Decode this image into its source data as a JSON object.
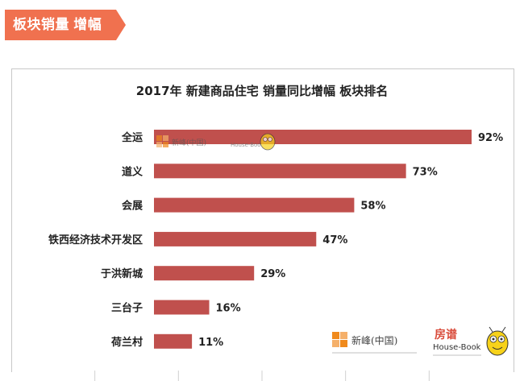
{
  "section_tag": "板块销量 增幅",
  "watermarks": {
    "brand_a_name": "新峰(中国)",
    "brand_b_name": "房谱",
    "brand_b_en": "House-Book",
    "accent_orange": "#f08a1c",
    "accent_red": "#d94b3a"
  },
  "chart_data": {
    "type": "bar",
    "orientation": "horizontal",
    "title": "2017年 新建商品住宅 销量同比增幅 板块排名",
    "categories": [
      "全运",
      "道义",
      "会展",
      "铁西经济技术开发区",
      "于洪新城",
      "三台子",
      "荷兰村"
    ],
    "values": [
      92,
      73,
      58,
      47,
      29,
      16,
      11
    ],
    "value_labels": [
      "92%",
      "73%",
      "58%",
      "47%",
      "29%",
      "16%",
      "11%"
    ],
    "unit": "%",
    "xlim": [
      0,
      92
    ],
    "bar_color": "#c0504d",
    "grid": "vertical-lines",
    "legend": "none"
  }
}
